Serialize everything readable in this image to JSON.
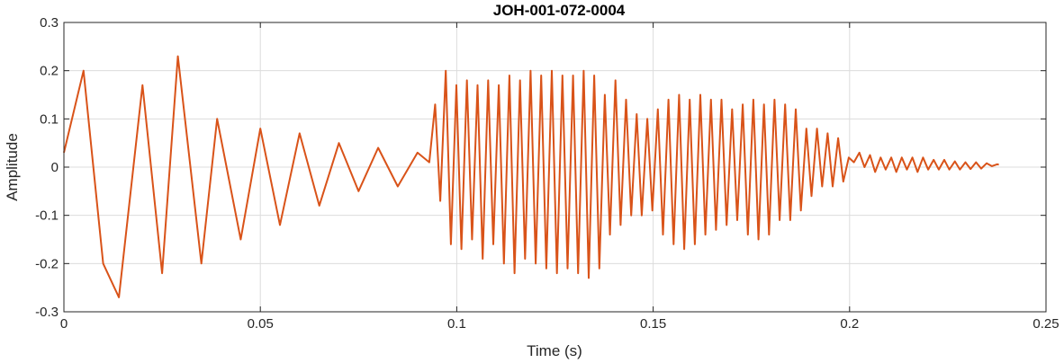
{
  "chart_data": {
    "type": "line",
    "title": "JOH-001-072-0004",
    "xlabel": "Time (s)",
    "ylabel": "Amplitude",
    "xlim": [
      0,
      0.25
    ],
    "ylim": [
      -0.3,
      0.3
    ],
    "grid": true,
    "legend": "none",
    "colors": {
      "line": "#D95319",
      "grid": "#DCDCDC",
      "axis": "#262626"
    },
    "x_ticks": [
      0,
      0.05,
      0.1,
      0.15,
      0.2,
      0.25
    ],
    "x_tick_labels": [
      "0",
      "0.05",
      "0.1",
      "0.15",
      "0.2",
      "0.25"
    ],
    "y_ticks": [
      -0.3,
      -0.2,
      -0.1,
      0,
      0.1,
      0.2,
      0.3
    ],
    "y_tick_labels": [
      "-0.3",
      "-0.2",
      "-0.1",
      "0",
      "0.1",
      "0.2",
      "0.3"
    ],
    "series": [
      {
        "x": [
          0,
          0.005,
          0.01,
          0.014,
          0.02,
          0.025,
          0.029,
          0.035,
          0.039,
          0.045,
          0.05,
          0.055,
          0.06,
          0.065,
          0.07,
          0.075,
          0.08,
          0.085,
          0.09,
          0.093,
          0.0945,
          0.0958,
          0.0972,
          0.0985,
          0.0999,
          0.1012,
          0.1026,
          0.1039,
          0.1053,
          0.1066,
          0.108,
          0.1093,
          0.1107,
          0.112,
          0.1134,
          0.1147,
          0.1161,
          0.1174,
          0.1188,
          0.1201,
          0.1215,
          0.1228,
          0.1242,
          0.1255,
          0.1269,
          0.1282,
          0.1296,
          0.1309,
          0.1323,
          0.1336,
          0.135,
          0.1363,
          0.1377,
          0.139,
          0.1404,
          0.1417,
          0.1431,
          0.1444,
          0.1458,
          0.1471,
          0.1485,
          0.1498,
          0.1512,
          0.1525,
          0.1539,
          0.1552,
          0.1566,
          0.1579,
          0.1593,
          0.1606,
          0.162,
          0.1633,
          0.1647,
          0.166,
          0.1674,
          0.1687,
          0.1701,
          0.1714,
          0.1728,
          0.1741,
          0.1755,
          0.1768,
          0.1782,
          0.1795,
          0.1809,
          0.1822,
          0.1836,
          0.1849,
          0.1863,
          0.1876,
          0.189,
          0.1903,
          0.1917,
          0.193,
          0.1944,
          0.1957,
          0.1971,
          0.1984,
          0.1998,
          0.2011,
          0.2025,
          0.2038,
          0.2052,
          0.2065,
          0.2079,
          0.2092,
          0.2106,
          0.2119,
          0.2133,
          0.2146,
          0.216,
          0.2173,
          0.2187,
          0.22,
          0.2214,
          0.2227,
          0.2241,
          0.2254,
          0.2268,
          0.2281,
          0.2295,
          0.2308,
          0.2322,
          0.2335,
          0.2349,
          0.2362,
          0.2376,
          0.238
        ],
        "y": [
          0.03,
          0.2,
          -0.2,
          -0.27,
          0.17,
          -0.22,
          0.23,
          -0.2,
          0.1,
          -0.15,
          0.08,
          -0.12,
          0.07,
          -0.08,
          0.05,
          -0.05,
          0.04,
          -0.04,
          0.03,
          0.01,
          0.13,
          -0.07,
          0.2,
          -0.16,
          0.17,
          -0.17,
          0.18,
          -0.15,
          0.17,
          -0.19,
          0.18,
          -0.16,
          0.17,
          -0.2,
          0.19,
          -0.22,
          0.18,
          -0.19,
          0.2,
          -0.2,
          0.19,
          -0.21,
          0.2,
          -0.22,
          0.19,
          -0.21,
          0.19,
          -0.22,
          0.2,
          -0.23,
          0.19,
          -0.21,
          0.15,
          -0.14,
          0.18,
          -0.12,
          0.14,
          -0.1,
          0.11,
          -0.1,
          0.1,
          -0.09,
          0.12,
          -0.14,
          0.14,
          -0.16,
          0.15,
          -0.17,
          0.14,
          -0.16,
          0.15,
          -0.14,
          0.14,
          -0.13,
          0.14,
          -0.12,
          0.12,
          -0.11,
          0.13,
          -0.14,
          0.14,
          -0.15,
          0.13,
          -0.14,
          0.14,
          -0.11,
          0.13,
          -0.11,
          0.12,
          -0.09,
          0.08,
          -0.06,
          0.08,
          -0.04,
          0.07,
          -0.04,
          0.06,
          -0.03,
          0.02,
          0.01,
          0.03,
          0.0,
          0.025,
          -0.01,
          0.02,
          -0.005,
          0.02,
          -0.01,
          0.02,
          -0.005,
          0.02,
          -0.01,
          0.02,
          -0.005,
          0.015,
          -0.005,
          0.015,
          -0.005,
          0.012,
          -0.005,
          0.01,
          -0.004,
          0.01,
          -0.003,
          0.008,
          0.002,
          0.006,
          0.005
        ]
      }
    ]
  }
}
